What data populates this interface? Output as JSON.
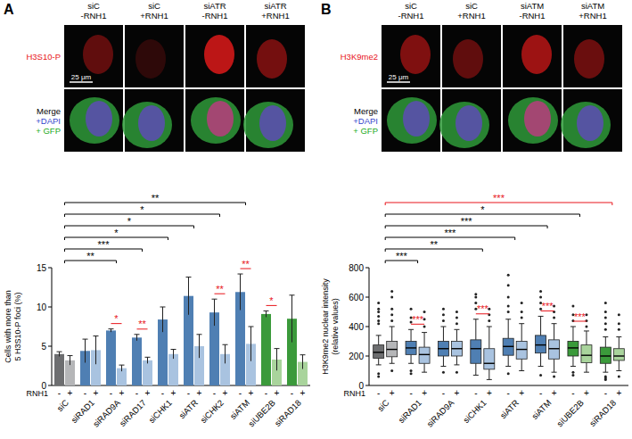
{
  "panels": [
    {
      "label": "A",
      "columns": [
        [
          "siC",
          "-RNH1"
        ],
        [
          "siC",
          "+RNH1"
        ],
        [
          "siATR",
          "-RNH1"
        ],
        [
          "siATR",
          "+RNH1"
        ]
      ],
      "rows": [
        [
          {
            "text": "H3S10-P",
            "color": "#e8141a"
          }
        ],
        [
          {
            "text": "Merge",
            "color": "#000000"
          },
          {
            "text": "+DAPI",
            "color": "#3344cc"
          },
          {
            "text": "+ GFP",
            "color": "#22aa22"
          }
        ]
      ],
      "scale_bar": "25 μm"
    },
    {
      "label": "B",
      "columns": [
        [
          "siC",
          "-RNH1"
        ],
        [
          "siC",
          "+RNH1"
        ],
        [
          "siATM",
          "-RNH1"
        ],
        [
          "siATM",
          "+RNH1"
        ]
      ],
      "rows": [
        [
          {
            "text": "H3K9me2",
            "color": "#e8141a"
          }
        ],
        [
          {
            "text": "Merge",
            "color": "#000000"
          },
          {
            "text": "+DAPI",
            "color": "#3344cc"
          },
          {
            "text": "+ GFP",
            "color": "#22aa22"
          }
        ]
      ],
      "scale_bar": "25 μm"
    }
  ],
  "chart_data": [
    {
      "type": "bar",
      "y_label": [
        "Cells with more than",
        "5 H3S10-P foci (%)"
      ],
      "x_label": "RNH1",
      "categories": [
        "siC",
        "siRAD1",
        "siRAD9A",
        "siRAD17",
        "siCHK1",
        "siATR",
        "siCHK2",
        "siATM",
        "siUBE2B",
        "siRAD18"
      ],
      "series": [
        {
          "name": "-",
          "colors": [
            "#6d6e70",
            "#4f7fb3",
            "#4f7fb3",
            "#4f7fb3",
            "#4f7fb3",
            "#4f7fb3",
            "#4f7fb3",
            "#4f7fb3",
            "#3b9a3b",
            "#3b9a3b"
          ],
          "values": [
            4.0,
            4.4,
            7.0,
            6.1,
            8.4,
            11.4,
            9.3,
            11.9,
            9.1,
            8.5
          ],
          "errors": [
            0.3,
            1.5,
            0.2,
            0.4,
            1.6,
            2.4,
            1.7,
            2.3,
            0.4,
            3.0
          ]
        },
        {
          "name": "+",
          "colors": [
            "#b5b6b8",
            "#a9c3e0",
            "#a9c3e0",
            "#a9c3e0",
            "#a9c3e0",
            "#a9c3e0",
            "#a9c3e0",
            "#a9c3e0",
            "#a9d49c",
            "#a9d49c"
          ],
          "values": [
            3.2,
            4.5,
            2.2,
            3.2,
            4.0,
            5.0,
            4.0,
            5.3,
            3.3,
            3.0
          ],
          "errors": [
            0.6,
            1.8,
            0.4,
            0.4,
            0.6,
            1.5,
            1.2,
            2.2,
            1.4,
            0.9
          ]
        }
      ],
      "ylim": [
        0,
        15
      ],
      "yticks": [
        0,
        5,
        10,
        15
      ],
      "grid": false,
      "significance": [
        {
          "between": [
            "siC",
            "siRAD9A"
          ],
          "label": "**",
          "color": "#000000"
        },
        {
          "between": [
            "siC",
            "siRAD17"
          ],
          "label": "***",
          "color": "#000000"
        },
        {
          "between": [
            "siC",
            "siCHK1"
          ],
          "label": "*",
          "color": "#000000"
        },
        {
          "between": [
            "siC",
            "siATR"
          ],
          "label": "*",
          "color": "#000000"
        },
        {
          "between": [
            "siC",
            "siCHK2"
          ],
          "label": "*",
          "color": "#000000"
        },
        {
          "between": [
            "siC",
            "siATM"
          ],
          "label": "**",
          "color": "#000000"
        },
        {
          "within": "siRAD9A",
          "label": "*",
          "color": "#e8141a"
        },
        {
          "within": "siRAD17",
          "label": "**",
          "color": "#e8141a"
        },
        {
          "within": "siCHK2",
          "label": "**",
          "color": "#e8141a"
        },
        {
          "within": "siATM",
          "label": "**",
          "color": "#e8141a"
        },
        {
          "within": "siUBE2B",
          "label": "*",
          "color": "#e8141a"
        }
      ]
    },
    {
      "type": "box",
      "y_label": [
        "H3K9me2 nuclear intensity",
        "(relative values)"
      ],
      "x_label": "RNH1",
      "categories": [
        "siC",
        "siRAD1",
        "siRAD9A",
        "siCHK1",
        "siATR",
        "siATM",
        "siUBE2B",
        "siRAD18"
      ],
      "series": [
        {
          "name": "-",
          "colors": [
            "#6d6e70",
            "#4f7fb3",
            "#4f7fb3",
            "#4f7fb3",
            "#4f7fb3",
            "#4f7fb3",
            "#3b9a3b",
            "#3b9a3b"
          ],
          "whisker_low": [
            140,
            150,
            130,
            70,
            130,
            130,
            130,
            90
          ],
          "q1": [
            185,
            210,
            200,
            150,
            205,
            220,
            200,
            150
          ],
          "median": [
            225,
            255,
            250,
            250,
            265,
            275,
            255,
            200
          ],
          "q3": [
            275,
            300,
            300,
            310,
            320,
            340,
            300,
            260
          ],
          "whisker_high": [
            340,
            380,
            400,
            450,
            450,
            470,
            400,
            330
          ],
          "outliers": [
            [
              440,
              470,
              500,
              520,
              560,
              80,
              60,
              420
            ],
            [
              430,
              460,
              520,
              100,
              80
            ],
            [
              440,
              480,
              520,
              90
            ],
            [
              520,
              560,
              600,
              620
            ],
            [
              500,
              540,
              600,
              680,
              750,
              80
            ],
            [
              520,
              560,
              600,
              640,
              70
            ],
            [
              440,
              480,
              540,
              90,
              70
            ],
            [
              380,
              420,
              460,
              500,
              560,
              60,
              40,
              50
            ]
          ]
        },
        {
          "name": "+",
          "colors": [
            "#b5b6b8",
            "#a9c3e0",
            "#a9c3e0",
            "#a9c3e0",
            "#a9c3e0",
            "#a9c3e0",
            "#a9d49c",
            "#a9d49c"
          ],
          "whisker_low": [
            150,
            90,
            140,
            40,
            100,
            90,
            90,
            100
          ],
          "q1": [
            195,
            150,
            200,
            110,
            180,
            180,
            155,
            170
          ],
          "median": [
            245,
            210,
            250,
            150,
            245,
            250,
            205,
            200
          ],
          "q3": [
            300,
            260,
            300,
            250,
            300,
            310,
            275,
            250
          ],
          "whisker_high": [
            400,
            360,
            380,
            400,
            420,
            420,
            370,
            330
          ],
          "outliers": [
            [
              440,
              480,
              520,
              600,
              640,
              100
            ],
            [
              400,
              450,
              500
            ],
            [
              420,
              460,
              500,
              90
            ],
            [
              440,
              480,
              520
            ],
            [
              460,
              500,
              560
            ],
            [
              460,
              500,
              540,
              60
            ],
            [
              400,
              440,
              480
            ],
            [
              380,
              420,
              480,
              60
            ]
          ]
        }
      ],
      "ylim": [
        0,
        800
      ],
      "yticks": [
        0,
        200,
        400,
        600,
        800
      ],
      "grid": false,
      "significance": [
        {
          "between": [
            "siC",
            "siRAD1"
          ],
          "label": "***",
          "color": "#000000"
        },
        {
          "between": [
            "siC",
            "siCHK1"
          ],
          "label": "**",
          "color": "#000000"
        },
        {
          "between": [
            "siC",
            "siATR"
          ],
          "label": "***",
          "color": "#000000"
        },
        {
          "between": [
            "siC",
            "siATM"
          ],
          "label": "***",
          "color": "#000000"
        },
        {
          "between": [
            "siC",
            "siUBE2B"
          ],
          "label": "*",
          "color": "#000000"
        },
        {
          "between": [
            "siC",
            "siRAD18"
          ],
          "label": "***",
          "color": "#e8141a"
        },
        {
          "within": "siRAD1",
          "label": "***",
          "color": "#e8141a"
        },
        {
          "within": "siCHK1",
          "label": "***",
          "color": "#e8141a"
        },
        {
          "within": "siATM",
          "label": "***",
          "color": "#e8141a"
        },
        {
          "within": "siUBE2B",
          "label": "***",
          "color": "#e8141a"
        }
      ]
    }
  ]
}
